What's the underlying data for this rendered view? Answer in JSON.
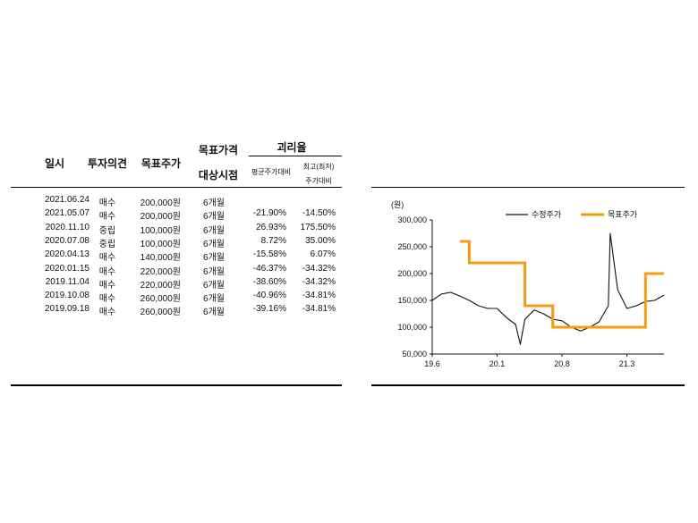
{
  "table": {
    "headers": {
      "date": "일시",
      "opinion": "투자의견",
      "target_price": "목표주가",
      "period_line1": "목표가격",
      "period_line2": "대상시점",
      "disparity": "괴리율",
      "avg": "평균주가대비",
      "max_line1": "최고(최저)",
      "max_line2": "주가대비"
    },
    "rows": [
      {
        "date": "2021.06.24",
        "opinion": "매수",
        "target_price": "200,000원",
        "period": "6개월",
        "avg": "",
        "max": ""
      },
      {
        "date": "2021.05.07",
        "opinion": "매수",
        "target_price": "200,000원",
        "period": "6개월",
        "avg": "-21.90%",
        "max": "-14.50%"
      },
      {
        "date": "2020.11.10",
        "opinion": "중립",
        "target_price": "100,000원",
        "period": "6개월",
        "avg": "26.93%",
        "max": "175.50%"
      },
      {
        "date": "2020.07.08",
        "opinion": "중립",
        "target_price": "100,000원",
        "period": "6개월",
        "avg": "8.72%",
        "max": "35.00%"
      },
      {
        "date": "2020.04.13",
        "opinion": "매수",
        "target_price": "140,000원",
        "period": "6개월",
        "avg": "-15.58%",
        "max": "6.07%"
      },
      {
        "date": "2020.01.15",
        "opinion": "매수",
        "target_price": "220,000원",
        "period": "6개월",
        "avg": "-46.37%",
        "max": "-34.32%"
      },
      {
        "date": "2019.11.04",
        "opinion": "매수",
        "target_price": "220,000원",
        "period": "6개월",
        "avg": "-38.60%",
        "max": "-34.32%"
      },
      {
        "date": "2019.10.08",
        "opinion": "매수",
        "target_price": "260,000원",
        "period": "6개월",
        "avg": "-40.96%",
        "max": "-34.81%"
      },
      {
        "date": "2019.09.18",
        "opinion": "매수",
        "target_price": "260,000원",
        "period": "6개월",
        "avg": "-39.16%",
        "max": "-34.81%"
      }
    ]
  },
  "chart_data": {
    "type": "line",
    "ylabel": "(원)",
    "ylim": [
      50000,
      300000
    ],
    "yticks": [
      "300,000",
      "250,000",
      "200,000",
      "150,000",
      "100,000",
      "50,000"
    ],
    "ytick_values": [
      300000,
      250000,
      200000,
      150000,
      100000,
      50000
    ],
    "xticks": [
      "19.6",
      "20.1",
      "20.8",
      "21.3"
    ],
    "xtick_values": [
      "2019-06",
      "2020-01",
      "2020-08",
      "2021-03"
    ],
    "x_range": [
      "2019-06",
      "2021-07"
    ],
    "legend_position": "top-right",
    "grid": false,
    "colors": {
      "price": "#111111",
      "target": "#f39c12"
    },
    "series": [
      {
        "name": "수정주가",
        "x": [
          "2019-06",
          "2019-07",
          "2019-08",
          "2019-09",
          "2019-10",
          "2019-11",
          "2019-12",
          "2020-01",
          "2020-02",
          "2020-03",
          "2020-03.5",
          "2020-04",
          "2020-05",
          "2020-06",
          "2020-07",
          "2020-08",
          "2020-09",
          "2020-10",
          "2020-11",
          "2020-12",
          "2021-01",
          "2021-01.2",
          "2021-02",
          "2021-03",
          "2021-04",
          "2021-05",
          "2021-06",
          "2021-07"
        ],
        "values": [
          150000,
          162000,
          165000,
          158000,
          150000,
          140000,
          135000,
          135000,
          118000,
          105000,
          68000,
          115000,
          132000,
          125000,
          115000,
          112000,
          100000,
          93000,
          100000,
          110000,
          140000,
          275000,
          170000,
          135000,
          140000,
          148000,
          150000,
          160000
        ]
      },
      {
        "name": "목표주가",
        "x": [
          "2019-09",
          "2019-10",
          "2019-10",
          "2020-01",
          "2020-01",
          "2020-04",
          "2020-04",
          "2020-07",
          "2020-07",
          "2021-05",
          "2021-05",
          "2021-07"
        ],
        "values": [
          260000,
          260000,
          220000,
          220000,
          220000,
          220000,
          140000,
          140000,
          100000,
          100000,
          200000,
          200000
        ]
      }
    ]
  }
}
